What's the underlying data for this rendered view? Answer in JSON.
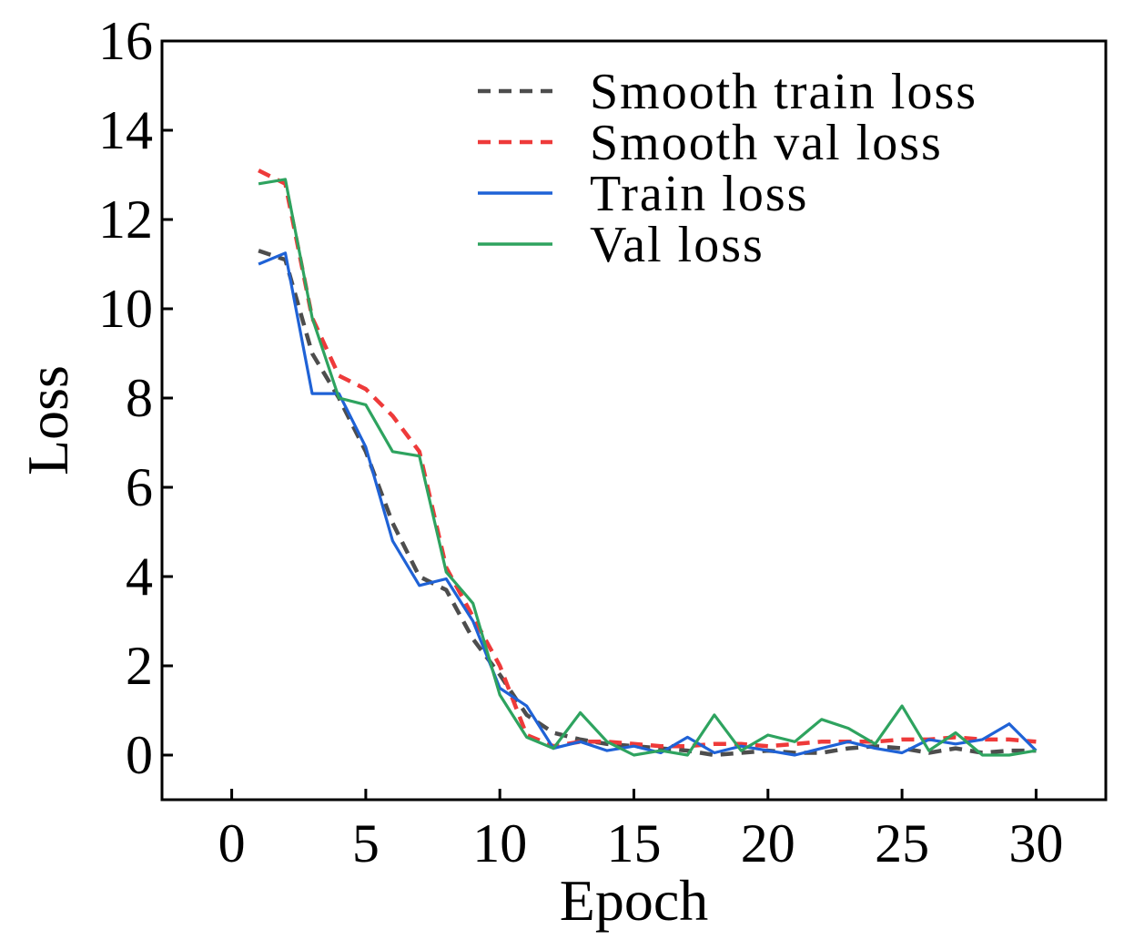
{
  "chart_data": {
    "type": "line",
    "title": "",
    "xlabel": "Epoch",
    "ylabel": "Loss",
    "xlim": [
      -2.6,
      32.6
    ],
    "ylim": [
      -1,
      16
    ],
    "xticks": [
      0,
      5,
      10,
      15,
      20,
      25,
      30
    ],
    "yticks": [
      0,
      2,
      4,
      6,
      8,
      10,
      12,
      14,
      16
    ],
    "grid": false,
    "legend_position": "top-right",
    "x": [
      1,
      2,
      3,
      4,
      5,
      6,
      7,
      8,
      9,
      10,
      11,
      12,
      13,
      14,
      15,
      16,
      17,
      18,
      19,
      20,
      21,
      22,
      23,
      24,
      25,
      26,
      27,
      28,
      29,
      30
    ],
    "series": [
      {
        "name": "Smooth train loss",
        "color": "#4d4d4d",
        "style": "dashed",
        "values": [
          11.3,
          11.1,
          9.0,
          8.0,
          6.8,
          5.2,
          4.0,
          3.7,
          2.6,
          1.8,
          0.9,
          0.5,
          0.35,
          0.25,
          0.2,
          0.15,
          0.1,
          0.0,
          0.05,
          0.1,
          0.05,
          0.05,
          0.15,
          0.2,
          0.15,
          0.05,
          0.15,
          0.05,
          0.1,
          0.1
        ]
      },
      {
        "name": "Smooth val loss",
        "color": "#ee3a3a",
        "style": "dashed",
        "values": [
          13.1,
          12.8,
          9.8,
          8.5,
          8.2,
          7.6,
          6.8,
          4.2,
          3.1,
          2.0,
          0.45,
          0.2,
          0.3,
          0.3,
          0.25,
          0.2,
          0.2,
          0.25,
          0.25,
          0.2,
          0.25,
          0.3,
          0.3,
          0.3,
          0.35,
          0.35,
          0.4,
          0.35,
          0.35,
          0.3
        ]
      },
      {
        "name": "Train loss",
        "color": "#1f62d6",
        "style": "solid",
        "values": [
          11.0,
          11.25,
          8.1,
          8.1,
          6.9,
          4.8,
          3.8,
          3.95,
          3.0,
          1.5,
          1.1,
          0.15,
          0.3,
          0.1,
          0.2,
          0.05,
          0.4,
          0.05,
          0.2,
          0.1,
          0.0,
          0.15,
          0.3,
          0.15,
          0.05,
          0.35,
          0.25,
          0.35,
          0.7,
          0.1
        ]
      },
      {
        "name": "Val loss",
        "color": "#2ea35f",
        "style": "solid",
        "values": [
          12.8,
          12.9,
          9.8,
          8.0,
          7.85,
          6.8,
          6.7,
          4.1,
          3.4,
          1.35,
          0.4,
          0.15,
          0.95,
          0.3,
          0.0,
          0.1,
          0.0,
          0.9,
          0.1,
          0.45,
          0.3,
          0.8,
          0.6,
          0.25,
          1.1,
          0.1,
          0.5,
          0.0,
          0.0,
          0.1
        ]
      }
    ]
  }
}
